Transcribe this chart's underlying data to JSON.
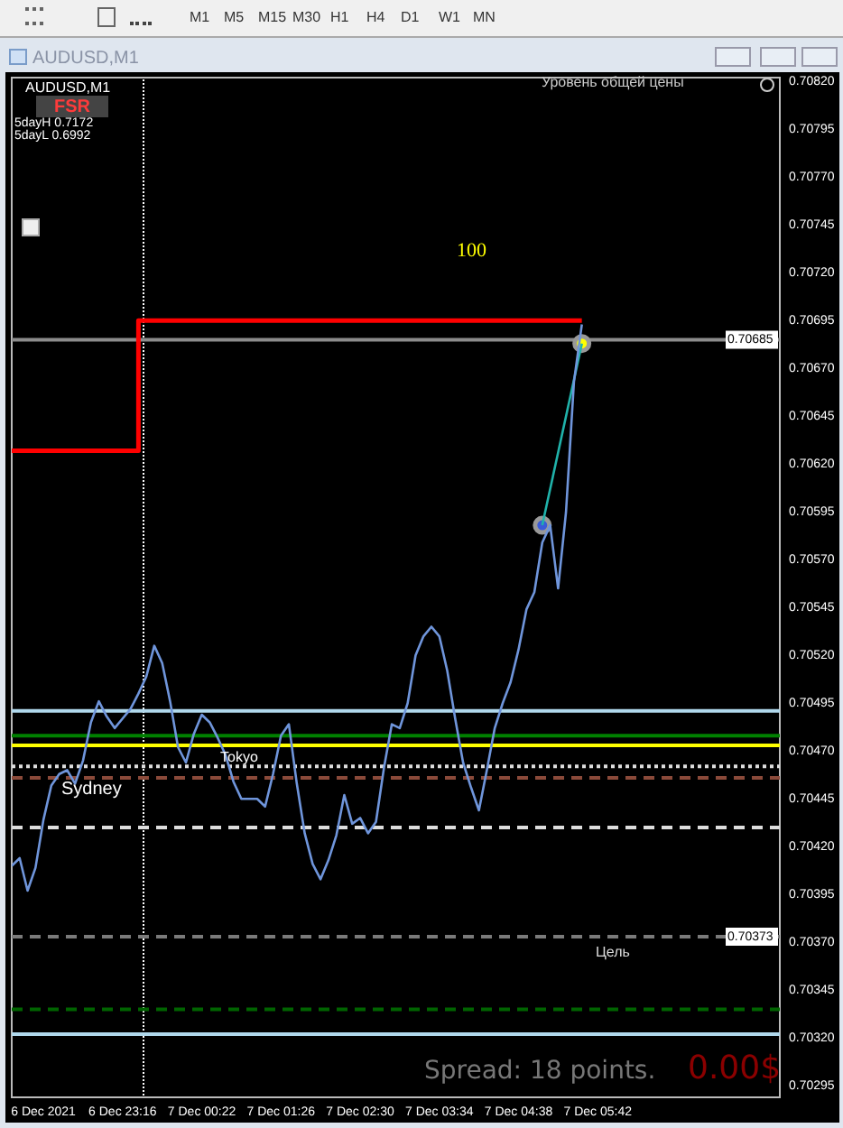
{
  "chart_data": {
    "type": "line",
    "annotations": [
      "AUDUSD,M1",
      "AUDUSD,M1",
      "FSR",
      "5dayH 0.7172",
      "5dayL 0.6992",
      "Уровень общей цены",
      "100",
      "Sydney",
      "Tokyo",
      "Spread: 18 points.",
      "0.00$",
      "M1",
      "M5",
      "M15",
      "M30",
      "H1",
      "H4",
      "D1",
      "W1",
      "MN",
      "Цель"
    ],
    "categories": [
      null,
      null,
      null,
      null,
      "6 Dec 2021",
      null,
      null,
      null,
      null,
      null,
      null,
      null,
      null,
      null,
      "6 Dec 23:16",
      null,
      null,
      null,
      null,
      null,
      null,
      null,
      null,
      null,
      "7 Dec 00:22",
      null,
      null,
      null,
      null,
      null,
      null,
      null,
      null,
      null,
      "7 Dec 01:26",
      null,
      null,
      null,
      null,
      null,
      null,
      null,
      null,
      null,
      "7 Dec 02:30",
      null,
      null,
      null,
      null,
      null,
      null,
      null,
      null,
      null,
      "7 Dec 03:34",
      null,
      null,
      null,
      null,
      null,
      null,
      null,
      null,
      null,
      "7 Dec 04:38",
      null,
      null,
      null,
      null,
      null,
      null,
      null,
      null,
      null,
      "7 Dec 05:42",
      null,
      null,
      null,
      null,
      null,
      null,
      null,
      null,
      null,
      null,
      null,
      null,
      null,
      null,
      null,
      null,
      null,
      null,
      null,
      null,
      null,
      null,
      null
    ],
    "ylim": [
      0.70289,
      0.70822
    ],
    "yticks": [
      {
        "value": 0.70295,
        "label": "0.70295"
      },
      {
        "value": 0.7032,
        "label": "0.70320"
      },
      {
        "value": 0.70345,
        "label": "0.70345"
      },
      {
        "value": 0.7037,
        "label": "0.70370"
      },
      {
        "value": 0.70395,
        "label": "0.70395"
      },
      {
        "value": 0.7042,
        "label": "0.70420"
      },
      {
        "value": 0.70445,
        "label": "0.70445"
      },
      {
        "value": 0.7047,
        "label": "0.70470"
      },
      {
        "value": 0.70495,
        "label": "0.70495"
      },
      {
        "value": 0.7052,
        "label": "0.70520"
      },
      {
        "value": 0.70545,
        "label": "0.70545"
      },
      {
        "value": 0.7057,
        "label": "0.70570"
      },
      {
        "value": 0.70595,
        "label": "0.70595"
      },
      {
        "value": 0.7062,
        "label": "0.70620"
      },
      {
        "value": 0.70645,
        "label": "0.70645"
      },
      {
        "value": 0.7067,
        "label": "0.70670"
      },
      {
        "value": 0.70695,
        "label": "0.70695"
      },
      {
        "value": 0.7072,
        "label": "0.70720"
      },
      {
        "value": 0.70745,
        "label": "0.70745"
      },
      {
        "value": 0.7077,
        "label": "0.70770"
      },
      {
        "value": 0.70795,
        "label": "0.70795"
      },
      {
        "value": 0.7082,
        "label": "0.70820"
      }
    ],
    "series": [
      {
        "type": "step",
        "color": "#ff0000",
        "values": [
          0.70627,
          0.70627,
          0.70627,
          0.70627,
          0.70627,
          0.70627,
          0.70627,
          0.70627,
          0.70627,
          0.70627,
          0.70627,
          0.70627,
          0.70627,
          0.70627,
          0.70627,
          0.70627,
          0.70627,
          0.70695,
          0.70695,
          0.70695,
          0.70695,
          0.70695,
          0.70695,
          0.70695,
          0.70695,
          0.70695,
          0.70695,
          0.70695,
          0.70695,
          0.70695,
          0.70695,
          0.70695,
          0.70695,
          0.70695,
          0.70695,
          0.70695,
          0.70695,
          0.70695,
          0.70695,
          0.70695,
          0.70695,
          0.70695,
          0.70695,
          0.70695,
          0.70695,
          0.70695,
          0.70695,
          0.70695,
          0.70695,
          0.70695,
          0.70695,
          0.70695,
          0.70695,
          0.70695,
          0.70695,
          0.70695,
          0.70695,
          0.70695,
          0.70695,
          0.70695,
          0.70695,
          0.70695,
          0.70695,
          0.70695,
          0.70695,
          0.70695,
          0.70695,
          0.70695,
          0.70695,
          0.70695,
          0.70695,
          0.70695,
          0.70695,
          null,
          null,
          null,
          null,
          null,
          null,
          null,
          null,
          null,
          null,
          null,
          null,
          null,
          null,
          null,
          null,
          null,
          null,
          null,
          null,
          null,
          null,
          null,
          null,
          null
        ]
      },
      {
        "color": "#6f95db",
        "values": [
          0.7041,
          0.70414,
          0.70397,
          0.70409,
          0.70434,
          0.70452,
          0.70458,
          0.7046,
          0.70453,
          0.70465,
          0.70485,
          0.70496,
          0.70488,
          0.70482,
          0.70487,
          0.70492,
          0.705,
          0.70509,
          0.70525,
          0.70516,
          0.70496,
          0.70472,
          0.70464,
          0.70479,
          0.70489,
          0.70485,
          0.70477,
          0.70468,
          0.70454,
          0.70445,
          0.70445,
          0.70445,
          0.70441,
          0.70458,
          0.70478,
          0.70484,
          0.70453,
          0.70427,
          0.70411,
          0.70403,
          0.70413,
          0.70426,
          0.70447,
          0.70432,
          0.70435,
          0.70427,
          0.70433,
          0.70461,
          0.70484,
          0.70482,
          0.70495,
          0.7052,
          0.7053,
          0.70535,
          0.7053,
          0.70512,
          0.70487,
          0.70464,
          0.70451,
          0.70439,
          0.7046,
          0.70482,
          0.70495,
          0.70506,
          0.70523,
          0.70544,
          0.70553,
          0.70579,
          0.70588,
          0.70555,
          0.70595,
          0.70663,
          0.70693,
          null,
          null,
          null,
          null,
          null,
          null,
          null,
          null,
          null,
          null,
          null,
          null,
          null,
          null,
          null,
          null,
          null,
          null,
          null,
          null,
          null,
          null,
          null,
          null,
          null
        ]
      },
      {
        "color": "#20b2aa",
        "values": [
          null,
          null,
          null,
          null,
          null,
          null,
          null,
          null,
          null,
          null,
          null,
          null,
          null,
          null,
          null,
          null,
          null,
          null,
          null,
          null,
          null,
          null,
          null,
          null,
          null,
          null,
          null,
          null,
          null,
          null,
          null,
          null,
          null,
          null,
          null,
          null,
          null,
          null,
          null,
          null,
          null,
          null,
          null,
          null,
          null,
          null,
          null,
          null,
          null,
          null,
          null,
          null,
          null,
          null,
          null,
          null,
          null,
          null,
          null,
          null,
          null,
          null,
          null,
          null,
          null,
          null,
          null,
          0.70588,
          null,
          null,
          null,
          null,
          0.70683,
          null,
          null,
          null,
          null,
          null,
          null,
          null,
          null,
          null,
          null,
          null,
          null,
          null,
          null,
          null,
          null,
          null,
          null,
          null,
          null,
          null,
          null,
          null,
          null,
          null
        ]
      },
      {
        "type": "scatter",
        "color": "#3a5bd9",
        "values": [
          null,
          null,
          null,
          null,
          null,
          null,
          null,
          null,
          null,
          null,
          null,
          null,
          null,
          null,
          null,
          null,
          null,
          null,
          null,
          null,
          null,
          null,
          null,
          null,
          null,
          null,
          null,
          null,
          null,
          null,
          null,
          null,
          null,
          null,
          null,
          null,
          null,
          null,
          null,
          null,
          null,
          null,
          null,
          null,
          null,
          null,
          null,
          null,
          null,
          null,
          null,
          null,
          null,
          null,
          null,
          null,
          null,
          null,
          null,
          null,
          null,
          null,
          null,
          null,
          null,
          null,
          null,
          0.70588,
          null,
          null,
          null,
          null,
          null,
          null,
          null,
          null,
          null,
          null,
          null,
          null,
          null,
          null,
          null,
          null,
          null,
          null,
          null,
          null,
          null,
          null,
          null,
          null,
          null,
          null,
          null,
          null,
          null,
          null
        ]
      },
      {
        "type": "scatter",
        "color": "#ffff00",
        "values": [
          null,
          null,
          null,
          null,
          null,
          null,
          null,
          null,
          null,
          null,
          null,
          null,
          null,
          null,
          null,
          null,
          null,
          null,
          null,
          null,
          null,
          null,
          null,
          null,
          null,
          null,
          null,
          null,
          null,
          null,
          null,
          null,
          null,
          null,
          null,
          null,
          null,
          null,
          null,
          null,
          null,
          null,
          null,
          null,
          null,
          null,
          null,
          null,
          null,
          null,
          null,
          null,
          null,
          null,
          null,
          null,
          null,
          null,
          null,
          null,
          null,
          null,
          null,
          null,
          null,
          null,
          null,
          null,
          null,
          null,
          null,
          null,
          0.70683,
          null,
          null,
          null,
          null,
          null,
          null,
          null,
          null,
          null,
          null,
          null,
          null,
          null,
          null,
          null,
          null,
          null,
          null,
          null,
          null,
          null,
          null,
          null,
          null,
          null
        ]
      }
    ],
    "ref_lines": [
      {
        "axis": "y",
        "value": 0.70685,
        "label": "0.70685",
        "color": "#8c8c8c",
        "line_style": "solid"
      },
      {
        "axis": "y",
        "value": 0.70491,
        "color": "#b0d8ec",
        "line_style": "solid"
      },
      {
        "axis": "y",
        "value": 0.70322,
        "color": "#b0d8ec",
        "line_style": "solid"
      },
      {
        "axis": "y",
        "value": 0.70478,
        "color": "#008000",
        "line_style": "solid"
      },
      {
        "axis": "y",
        "value": 0.70473,
        "color": "#ffff00",
        "line_style": "solid"
      },
      {
        "axis": "y",
        "value": 0.70462,
        "color": "#dddddd",
        "line_style": "dotted"
      },
      {
        "axis": "y",
        "value": 0.70456,
        "color": "#8b4a3a",
        "line_style": "dashed"
      },
      {
        "axis": "y",
        "value": 0.7043,
        "color": "#dddddd",
        "line_style": "dashed"
      },
      {
        "axis": "y",
        "value": 0.70373,
        "label": "0.70373",
        "color": "#7a7a7a",
        "line_style": "dashed"
      },
      {
        "axis": "y",
        "value": 0.70335,
        "color": "#006400",
        "line_style": "dashed"
      }
    ]
  }
}
